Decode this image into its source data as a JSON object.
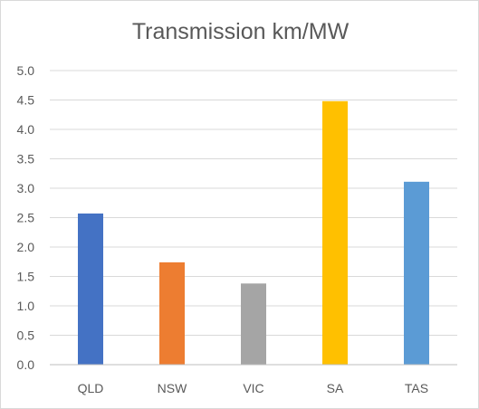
{
  "chart_data": {
    "type": "bar",
    "title": "Transmission km/MW",
    "xlabel": "",
    "ylabel": "",
    "categories": [
      "QLD",
      "NSW",
      "VIC",
      "SA",
      "TAS"
    ],
    "values": [
      2.57,
      1.74,
      1.38,
      4.48,
      3.11
    ],
    "colors": [
      "#4472c4",
      "#ed7d31",
      "#a5a5a5",
      "#ffc000",
      "#5b9bd5"
    ],
    "ylim": [
      0,
      5
    ],
    "yticks": [
      "0.0",
      "0.5",
      "1.0",
      "1.5",
      "2.0",
      "2.5",
      "3.0",
      "3.5",
      "4.0",
      "4.5",
      "5.0"
    ],
    "grid": true,
    "legend": "none"
  }
}
